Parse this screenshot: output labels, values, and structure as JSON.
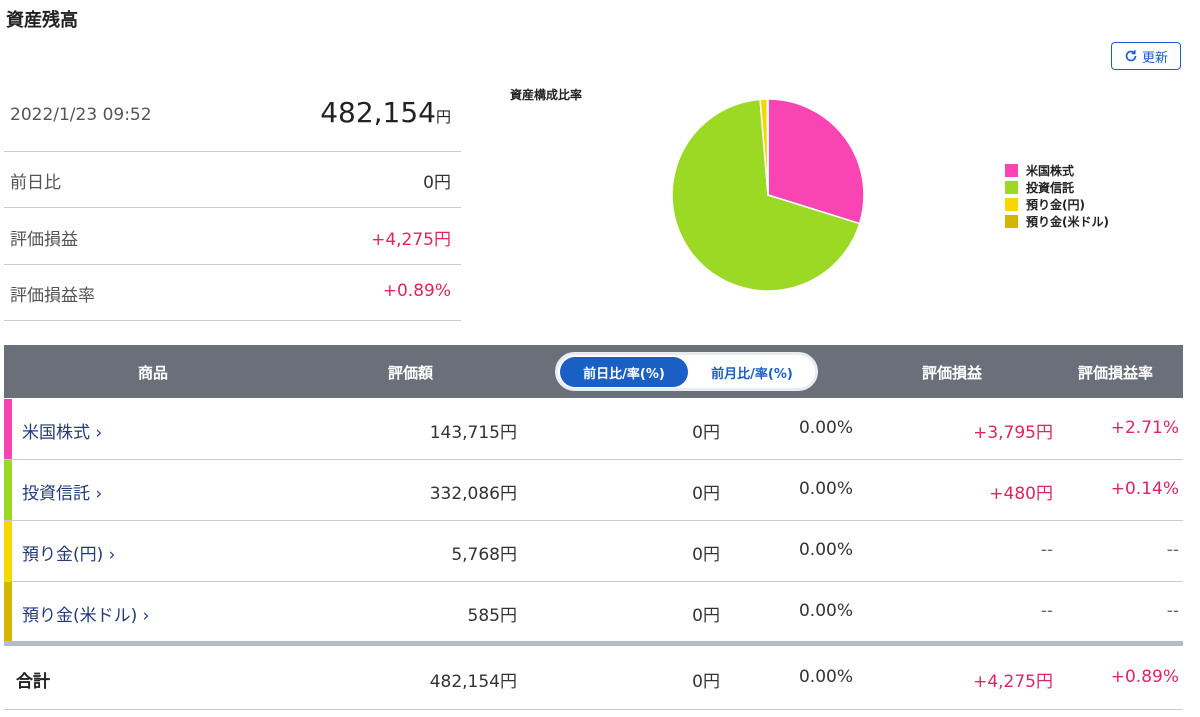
{
  "header": {
    "title": "資産残高",
    "refresh": "更新"
  },
  "summary": {
    "datetime": "2022/1/23 09:52",
    "total": "482,154",
    "total_unit": "円",
    "rows": [
      [
        "前日比",
        "0円"
      ],
      [
        "評価損益",
        "+4,275円"
      ],
      [
        "評価損益率",
        "+0.89%"
      ]
    ]
  },
  "chart_data": {
    "type": "pie",
    "title": "資産構成比率",
    "categories": [
      "米国株式",
      "投資信託",
      "預り金(円)",
      "預り金(米ドル)"
    ],
    "values": [
      143715,
      332086,
      5768,
      585
    ],
    "colors": [
      "#f945b4",
      "#9bd924",
      "#f7d700",
      "#d4b600"
    ]
  },
  "table": {
    "headers": [
      "商品",
      "評価額",
      "評価損益",
      "評価損益率"
    ],
    "toggle": [
      "前日比/率(%)",
      "前月比/率(%)"
    ],
    "rows": [
      [
        "米国株式 ›",
        "143,715円",
        "0円",
        "0.00%",
        "+3,795円",
        "+2.71%"
      ],
      [
        "投資信託 ›",
        "332,086円",
        "0円",
        "0.00%",
        "+480円",
        "+0.14%"
      ],
      [
        "預り金(円) ›",
        "5,768円",
        "0円",
        "0.00%",
        "--",
        "--"
      ],
      [
        "預り金(米ドル) ›",
        "585円",
        "0円",
        "0.00%",
        "--",
        "--"
      ]
    ],
    "total": [
      "合計",
      "482,154円",
      "0円",
      "0.00%",
      "+4,275円",
      "+0.89%"
    ]
  }
}
